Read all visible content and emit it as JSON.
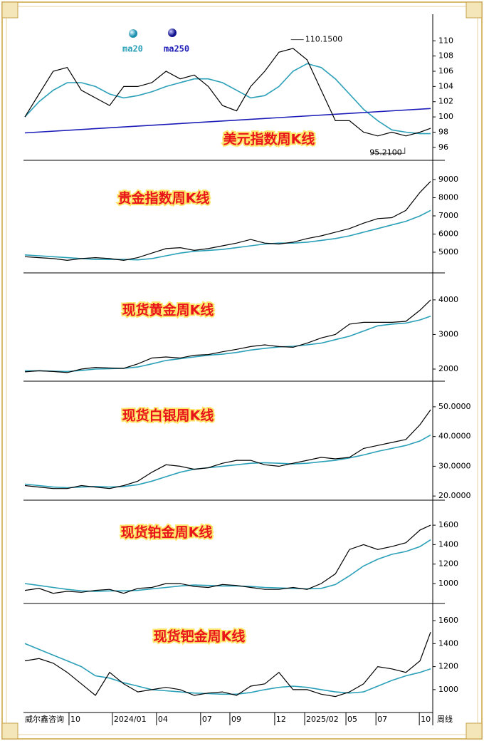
{
  "chart_data": [
    {
      "type": "line",
      "title": "美元指数周K线",
      "x": [
        0,
        4,
        8,
        12,
        16,
        20,
        24,
        28,
        32,
        36,
        40,
        44,
        48,
        52,
        56,
        60,
        64,
        68,
        72,
        76,
        80,
        84,
        88,
        92,
        96,
        100,
        104,
        108,
        112,
        115
      ],
      "xlim": [
        0,
        115
      ],
      "values": [
        100,
        103,
        106,
        106.5,
        103.5,
        102.5,
        101.5,
        104,
        104,
        104.5,
        106,
        105,
        105.5,
        104,
        101.5,
        100.8,
        104,
        106,
        108.5,
        109,
        107.5,
        103.5,
        99.5,
        99.5,
        98,
        97.5,
        98,
        97.5,
        98,
        98.5
      ],
      "color": "#000000",
      "series": [
        {
          "name": "ma20",
          "color": "#2aa0b8",
          "values": [
            100,
            102,
            103.5,
            104.5,
            104.5,
            104,
            103,
            102.5,
            102.8,
            103.3,
            104,
            104.5,
            105,
            105,
            104.5,
            103.5,
            102.5,
            102.8,
            104,
            106,
            107,
            106.5,
            105,
            103,
            101,
            99.5,
            98.3,
            98,
            97.8,
            97.8
          ]
        },
        {
          "name": "ma250",
          "color": "#1c1cb8",
          "x": [
            0,
            115
          ],
          "values": [
            97.9,
            101.1
          ]
        }
      ],
      "annotations": [
        {
          "text": "110.1500",
          "x": 75.4,
          "y": 110.15
        },
        {
          "text": "95.2100",
          "x": 98,
          "y": 95.21
        }
      ],
      "ylim": [
        94.3,
        113.3
      ],
      "yticks": [
        96,
        98,
        100,
        102,
        104,
        106,
        108,
        110
      ]
    },
    {
      "type": "line",
      "title": "贵金指数周K线",
      "x": [
        0,
        4,
        8,
        12,
        16,
        20,
        24,
        28,
        32,
        36,
        40,
        44,
        48,
        52,
        56,
        60,
        64,
        68,
        72,
        76,
        80,
        84,
        88,
        92,
        96,
        100,
        104,
        108,
        112,
        115
      ],
      "xlim": [
        0,
        115
      ],
      "values": [
        4750,
        4700,
        4650,
        4550,
        4650,
        4700,
        4650,
        4550,
        4700,
        4950,
        5200,
        5250,
        5100,
        5200,
        5350,
        5500,
        5700,
        5500,
        5450,
        5550,
        5750,
        5900,
        6100,
        6300,
        6600,
        6850,
        6900,
        7300,
        8300,
        8900
      ],
      "color": "#000000",
      "series": [
        {
          "name": "ma20",
          "color": "#2aa0b8",
          "values": [
            4850,
            4800,
            4750,
            4700,
            4650,
            4600,
            4600,
            4600,
            4580,
            4650,
            4800,
            4950,
            5050,
            5100,
            5150,
            5250,
            5350,
            5450,
            5500,
            5500,
            5550,
            5650,
            5750,
            5900,
            6100,
            6300,
            6500,
            6700,
            7000,
            7300
          ]
        }
      ],
      "ylim": [
        3860,
        10060
      ],
      "yticks": [
        5000,
        6000,
        7000,
        8000,
        9000
      ]
    },
    {
      "type": "line",
      "title": "现货黄金周K线",
      "x": [
        0,
        4,
        8,
        12,
        16,
        20,
        24,
        28,
        32,
        36,
        40,
        44,
        48,
        52,
        56,
        60,
        64,
        68,
        72,
        76,
        80,
        84,
        88,
        92,
        96,
        100,
        104,
        108,
        112,
        115
      ],
      "xlim": [
        0,
        115
      ],
      "values": [
        1920,
        1950,
        1930,
        1900,
        2000,
        2050,
        2030,
        2020,
        2150,
        2320,
        2350,
        2320,
        2400,
        2420,
        2500,
        2570,
        2650,
        2700,
        2650,
        2630,
        2750,
        2900,
        3000,
        3300,
        3350,
        3350,
        3350,
        3380,
        3700,
        4000
      ],
      "color": "#000000",
      "series": [
        {
          "name": "ma20",
          "color": "#2aa0b8",
          "values": [
            1950,
            1950,
            1940,
            1930,
            1960,
            2000,
            2010,
            2020,
            2060,
            2150,
            2250,
            2300,
            2350,
            2400,
            2430,
            2480,
            2550,
            2600,
            2640,
            2660,
            2700,
            2750,
            2850,
            2950,
            3100,
            3250,
            3300,
            3330,
            3420,
            3530
          ]
        }
      ],
      "ylim": [
        1650,
        4780
      ],
      "yticks": [
        2000,
        3000,
        4000
      ]
    },
    {
      "type": "line",
      "title": "现货白银周K线",
      "x": [
        0,
        4,
        8,
        12,
        16,
        20,
        24,
        28,
        32,
        36,
        40,
        44,
        48,
        52,
        56,
        60,
        64,
        68,
        72,
        76,
        80,
        84,
        88,
        92,
        96,
        100,
        104,
        108,
        112,
        115
      ],
      "xlim": [
        0,
        115
      ],
      "values": [
        23.5,
        23,
        22.5,
        22.5,
        23.5,
        23,
        22.5,
        23.5,
        25,
        28,
        30.5,
        30,
        29,
        29.5,
        31,
        32,
        32,
        30.5,
        30,
        31,
        32,
        33,
        32.5,
        33,
        36,
        37,
        38,
        39,
        44,
        49
      ],
      "color": "#000000",
      "series": [
        {
          "name": "ma20",
          "color": "#2aa0b8",
          "values": [
            24,
            23.5,
            23,
            22.8,
            23,
            23.2,
            23,
            23.2,
            23.8,
            25,
            26.5,
            28,
            29,
            29.5,
            30,
            30.5,
            31,
            31.2,
            31,
            30.8,
            31,
            31.5,
            32,
            32.8,
            33.8,
            35,
            36,
            37,
            38.5,
            40.5
          ]
        }
      ],
      "ylim": [
        18.6,
        58.6
      ],
      "yticks": [
        {
          "value": 20,
          "label": "20.0000"
        },
        {
          "value": 30,
          "label": "30.0000"
        },
        {
          "value": 40,
          "label": "40.0000"
        },
        {
          "value": 50,
          "label": "50.0000"
        }
      ]
    },
    {
      "type": "line",
      "title": "现货铂金周K线",
      "x": [
        0,
        4,
        8,
        12,
        16,
        20,
        24,
        28,
        32,
        36,
        40,
        44,
        48,
        52,
        56,
        60,
        64,
        68,
        72,
        76,
        80,
        84,
        88,
        92,
        96,
        100,
        104,
        108,
        112,
        115
      ],
      "xlim": [
        0,
        115
      ],
      "values": [
        930,
        950,
        900,
        920,
        910,
        930,
        940,
        900,
        950,
        960,
        1000,
        1000,
        970,
        960,
        990,
        980,
        960,
        940,
        940,
        960,
        940,
        1000,
        1100,
        1350,
        1400,
        1350,
        1380,
        1420,
        1550,
        1600
      ],
      "color": "#000000",
      "series": [
        {
          "name": "ma20",
          "color": "#2aa0b8",
          "values": [
            1000,
            980,
            960,
            940,
            925,
            920,
            925,
            925,
            930,
            945,
            960,
            975,
            985,
            980,
            975,
            975,
            970,
            960,
            955,
            950,
            945,
            950,
            990,
            1080,
            1180,
            1250,
            1300,
            1330,
            1380,
            1450
          ]
        }
      ],
      "ylim": [
        795,
        1857
      ],
      "yticks": [
        1000,
        1200,
        1400,
        1600
      ]
    },
    {
      "type": "line",
      "title": "现货钯金周K线",
      "x": [
        0,
        4,
        8,
        12,
        16,
        20,
        24,
        28,
        32,
        36,
        40,
        44,
        48,
        52,
        56,
        60,
        64,
        68,
        72,
        76,
        80,
        84,
        88,
        92,
        96,
        100,
        104,
        108,
        112,
        115
      ],
      "xlim": [
        0,
        115
      ],
      "values": [
        1250,
        1270,
        1230,
        1150,
        1050,
        950,
        1150,
        1050,
        980,
        1000,
        1020,
        1000,
        950,
        970,
        980,
        950,
        1030,
        1050,
        1150,
        1000,
        1000,
        960,
        940,
        980,
        1050,
        1200,
        1180,
        1150,
        1250,
        1500
      ],
      "color": "#000000",
      "series": [
        {
          "name": "ma20",
          "color": "#2aa0b8",
          "values": [
            1400,
            1350,
            1300,
            1250,
            1200,
            1120,
            1100,
            1060,
            1030,
            1000,
            990,
            980,
            970,
            965,
            960,
            960,
            975,
            1000,
            1020,
            1030,
            1020,
            1000,
            980,
            970,
            980,
            1030,
            1080,
            1120,
            1150,
            1180
          ]
        }
      ],
      "ylim": [
        801,
        1749
      ],
      "yticks": [
        1000,
        1200,
        1400,
        1600
      ],
      "xticks": [
        {
          "value": 12.5,
          "label": "10"
        },
        {
          "value": 24.8,
          "label": "2024/01"
        },
        {
          "value": 37.3,
          "label": "04"
        },
        {
          "value": 49.8,
          "label": "07"
        },
        {
          "value": 58.1,
          "label": "09"
        },
        {
          "value": 70.8,
          "label": "12"
        },
        {
          "value": 79.3,
          "label": "2025/02"
        },
        {
          "value": 91,
          "label": "05"
        },
        {
          "value": 99.5,
          "label": "07"
        },
        {
          "value": 111.8,
          "label": "10"
        }
      ],
      "source": "威尔鑫咨询",
      "x_label": "周线"
    }
  ]
}
